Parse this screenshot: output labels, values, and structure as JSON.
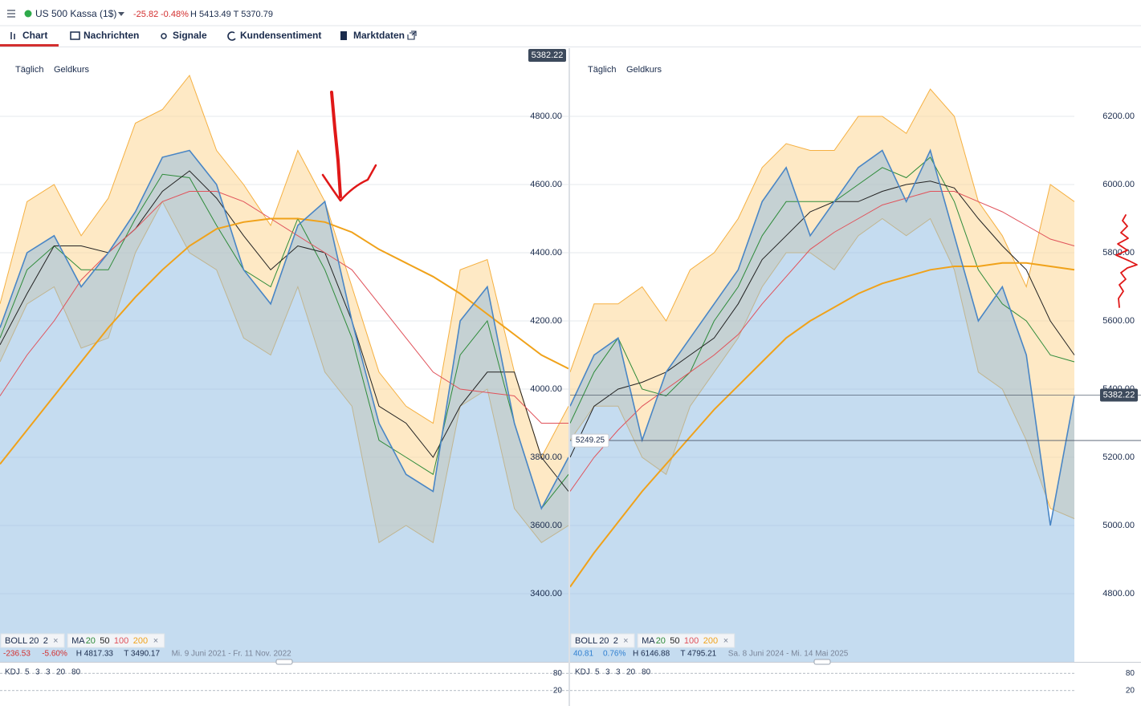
{
  "header": {
    "instrument": "US 500 Kassa (1$)",
    "change": "-25.82",
    "change_pct": "-0.48%",
    "high_low": "H 5413.49 T 5370.79"
  },
  "tabs": [
    "Chart",
    "Nachrichten",
    "Signale",
    "Kundensentiment",
    "Marktdaten"
  ],
  "chart_data": [
    {
      "type": "line",
      "period": "Täglich",
      "price_kind": "Geldkurs",
      "ylim": [
        3200,
        5000
      ],
      "yticks": [
        {
          "value": 3400,
          "label": "3400.00"
        },
        {
          "value": 3600,
          "label": "3600.00"
        },
        {
          "value": 3800,
          "label": "3800.00"
        },
        {
          "value": 4000,
          "label": "4000.00"
        },
        {
          "value": 4200,
          "label": "4200.00"
        },
        {
          "value": 4400,
          "label": "4400.00"
        },
        {
          "value": 4600,
          "label": "4600.00"
        },
        {
          "value": 4800,
          "label": "4800.00"
        }
      ],
      "price_tag": 5382.22,
      "price": {
        "color": "#4a86c5",
        "values": [
          4180,
          4400,
          4450,
          4300,
          4400,
          4520,
          4680,
          4700,
          4600,
          4350,
          4250,
          4480,
          4550,
          4200,
          3900,
          3750,
          3700,
          4200,
          4300,
          3900,
          3650,
          3800
        ]
      },
      "bands": {
        "color": "#f5b041",
        "upper": [
          4250,
          4550,
          4600,
          4450,
          4560,
          4780,
          4820,
          4920,
          4700,
          4600,
          4480,
          4700,
          4550,
          4300,
          4050,
          3950,
          3900,
          4350,
          4380,
          4050,
          3800,
          3950
        ],
        "lower": [
          4080,
          4250,
          4300,
          4120,
          4150,
          4400,
          4550,
          4400,
          4350,
          4150,
          4100,
          4300,
          4050,
          3950,
          3550,
          3600,
          3550,
          3950,
          4000,
          3650,
          3550,
          3600
        ]
      },
      "mas": [
        {
          "color": "#2e8b3a",
          "values": [
            4150,
            4350,
            4420,
            4350,
            4350,
            4500,
            4630,
            4620,
            4480,
            4350,
            4300,
            4500,
            4350,
            4150,
            3850,
            3800,
            3750,
            4100,
            4200,
            3900,
            3650,
            3750
          ]
        },
        {
          "color": "#222222",
          "values": [
            4130,
            4280,
            4420,
            4420,
            4400,
            4470,
            4580,
            4640,
            4560,
            4450,
            4350,
            4420,
            4400,
            4200,
            3950,
            3900,
            3800,
            3950,
            4050,
            4050,
            3800,
            3700
          ]
        },
        {
          "color": "#e0525a",
          "values": [
            3980,
            4100,
            4200,
            4320,
            4400,
            4470,
            4550,
            4580,
            4580,
            4550,
            4500,
            4450,
            4400,
            4350,
            4250,
            4150,
            4050,
            4000,
            3990,
            3980,
            3900,
            3900
          ]
        },
        {
          "color": "#f0a21a",
          "values": [
            3780,
            3880,
            3980,
            4080,
            4180,
            4270,
            4350,
            4420,
            4470,
            4490,
            4500,
            4500,
            4490,
            4460,
            4410,
            4370,
            4330,
            4280,
            4220,
            4160,
            4100,
            4060
          ]
        }
      ],
      "legend_boll": [
        "BOLL",
        20,
        2
      ],
      "legend_ma": [
        "MA",
        20,
        50,
        100,
        200
      ],
      "stats": [
        {
          "text": "-236.53",
          "color": "#d32f2f"
        },
        {
          "text": "-5.60%",
          "color": "#d32f2f"
        },
        {
          "text": "H 4817.33",
          "color": "#1a2b4c"
        },
        {
          "text": "T 3490.17",
          "color": "#1a2b4c"
        },
        {
          "text": "Mi. 9 Juni 2021 - Fr. 11 Nov. 2022",
          "color": "#7a8599"
        }
      ],
      "kdj": {
        "params": [
          "KDJ",
          5,
          3,
          3,
          20,
          80
        ],
        "ylim": [
          0,
          100
        ],
        "ticks": [
          80,
          20
        ]
      }
    },
    {
      "type": "line",
      "period": "Täglich",
      "price_kind": "Geldkurs",
      "ylim": [
        4600,
        6400
      ],
      "yticks": [
        {
          "value": 4800,
          "label": "4800.00"
        },
        {
          "value": 5000,
          "label": "5000.00"
        },
        {
          "value": 5200,
          "label": "5200.00"
        },
        {
          "value": 5400,
          "label": "5400.00"
        },
        {
          "value": 5600,
          "label": "5600.00"
        },
        {
          "value": 5800,
          "label": "5800.00"
        },
        {
          "value": 6000,
          "label": "6000.00"
        },
        {
          "value": 6200,
          "label": "6200.00"
        }
      ],
      "price_tag": 5382.22,
      "ref_line": 5249.25,
      "price": {
        "color": "#4a86c5",
        "values": [
          5350,
          5500,
          5550,
          5250,
          5450,
          5550,
          5650,
          5750,
          5950,
          6050,
          5850,
          5950,
          6050,
          6100,
          5950,
          6100,
          5850,
          5600,
          5700,
          5500,
          5000,
          5380
        ]
      },
      "bands": {
        "color": "#f5b041",
        "upper": [
          5450,
          5650,
          5650,
          5700,
          5600,
          5750,
          5800,
          5900,
          6050,
          6120,
          6100,
          6100,
          6200,
          6200,
          6150,
          6280,
          6200,
          5950,
          5850,
          5700,
          6000,
          5950
        ],
        "lower": [
          5250,
          5350,
          5350,
          5200,
          5150,
          5350,
          5450,
          5550,
          5700,
          5800,
          5800,
          5750,
          5850,
          5900,
          5850,
          5900,
          5750,
          5450,
          5400,
          5250,
          5050,
          5020
        ]
      },
      "mas": [
        {
          "color": "#2e8b3a",
          "values": [
            5300,
            5450,
            5550,
            5400,
            5380,
            5450,
            5600,
            5700,
            5850,
            5950,
            5950,
            5950,
            6000,
            6050,
            6020,
            6080,
            5950,
            5750,
            5650,
            5600,
            5500,
            5480
          ]
        },
        {
          "color": "#222222",
          "values": [
            5200,
            5350,
            5400,
            5420,
            5450,
            5500,
            5550,
            5650,
            5780,
            5850,
            5920,
            5950,
            5950,
            5980,
            6000,
            6010,
            5990,
            5900,
            5820,
            5750,
            5600,
            5500
          ]
        },
        {
          "color": "#e0525a",
          "values": [
            5100,
            5200,
            5280,
            5350,
            5400,
            5450,
            5500,
            5560,
            5650,
            5730,
            5810,
            5860,
            5900,
            5940,
            5960,
            5980,
            5980,
            5950,
            5920,
            5880,
            5840,
            5820
          ]
        },
        {
          "color": "#f0a21a",
          "values": [
            4820,
            4920,
            5010,
            5100,
            5180,
            5260,
            5340,
            5410,
            5480,
            5550,
            5600,
            5640,
            5680,
            5710,
            5730,
            5750,
            5760,
            5760,
            5770,
            5770,
            5760,
            5750
          ]
        }
      ],
      "legend_boll": [
        "BOLL",
        20,
        2
      ],
      "legend_ma": [
        "MA",
        20,
        50,
        100,
        200
      ],
      "stats": [
        {
          "text": "40.81",
          "color": "#2f7fd0"
        },
        {
          "text": "0.76%",
          "color": "#2f7fd0"
        },
        {
          "text": "H 6146.88",
          "color": "#1a2b4c"
        },
        {
          "text": "T 4795.21",
          "color": "#1a2b4c"
        },
        {
          "text": "Sa. 8 Juni 2024 - Mi. 14 Mai 2025",
          "color": "#7a8599"
        }
      ],
      "kdj": {
        "params": [
          "KDJ",
          5,
          3,
          3,
          20,
          80
        ],
        "ylim": [
          0,
          100
        ],
        "ticks": [
          80,
          20
        ]
      }
    }
  ]
}
